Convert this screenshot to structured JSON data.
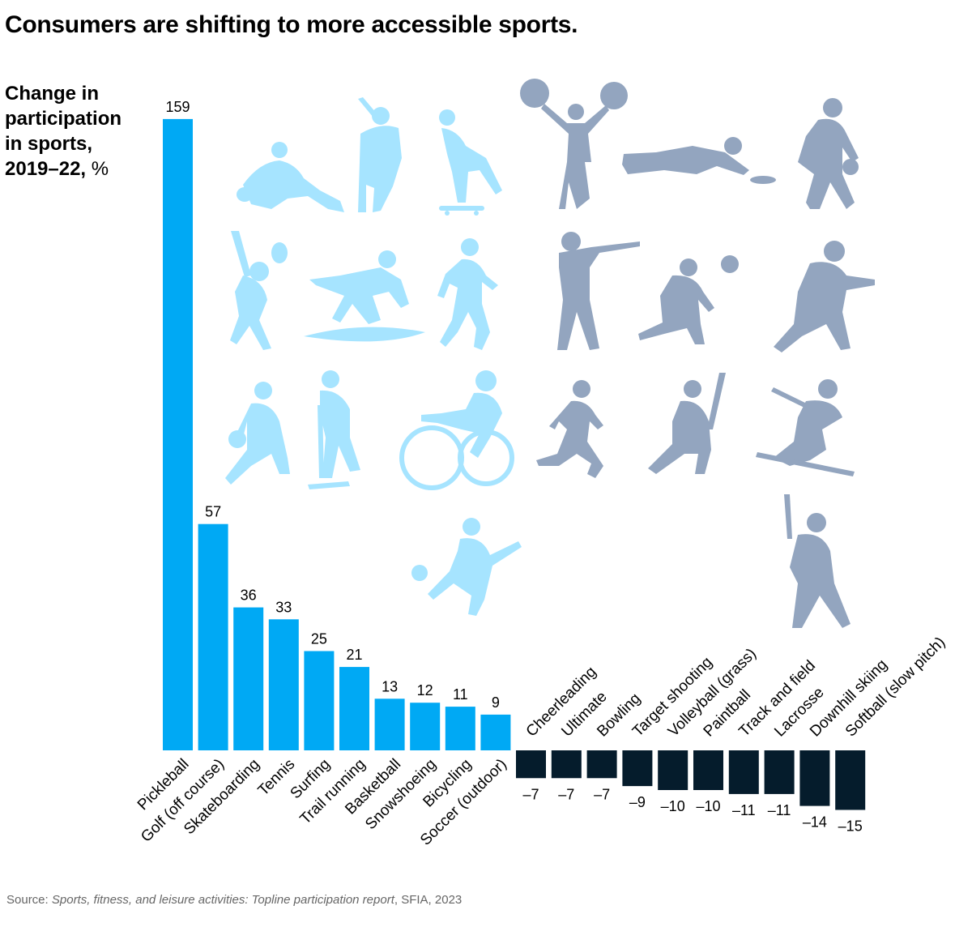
{
  "title": "Consumers are shifting to more accessible sports.",
  "ylabel_bold": "Change in participation in sports, 2019–22,",
  "ylabel_unit": "%",
  "source": {
    "prefix": "Source: ",
    "italic": "Sports, fitness, and leisure activities: Topline participation report",
    "suffix": ", SFIA, 2023"
  },
  "colors": {
    "positive": "#00a9f4",
    "negative": "#051c2c",
    "icon_positive": "#a6e4ff",
    "icon_negative": "#93a5bf"
  },
  "chart_data": {
    "type": "bar",
    "categories": [
      "Pickleball",
      "Golf (off course)",
      "Skateboarding",
      "Tennis",
      "Surfing",
      "Trail running",
      "Basketball",
      "Snowshoeing",
      "Bicycling",
      "Soccer (outdoor)",
      "Cheerleading",
      "Ultimate",
      "Bowling",
      "Target shooting",
      "Volleyball (grass)",
      "Paintball",
      "Track and field",
      "Lacrosse",
      "Downhill skiing",
      "Softball (slow pitch)"
    ],
    "values": [
      159,
      57,
      36,
      33,
      25,
      21,
      13,
      12,
      11,
      9,
      -7,
      -7,
      -7,
      -9,
      -10,
      -10,
      -11,
      -11,
      -14,
      -15
    ],
    "value_labels": [
      "159",
      "57",
      "36",
      "33",
      "25",
      "21",
      "13",
      "12",
      "11",
      "9",
      "–7",
      "–7",
      "–7",
      "–9",
      "–10",
      "–10",
      "–11",
      "–11",
      "–14",
      "–15"
    ],
    "ylabel": "Change in participation in sports, 2019–22, %",
    "grid": false,
    "legend": "none"
  },
  "icons": [
    "catcher-icon",
    "golfer-icon",
    "skateboarder-icon",
    "cheerleader-icon",
    "ultimate-diving-icon",
    "bowler-icon",
    "tennis-player-icon",
    "surfer-icon",
    "trail-runner-icon",
    "target-shooter-icon",
    "volleyball-player-icon",
    "paintball-player-icon",
    "basketball-player-icon",
    "snowshoer-icon",
    "cyclist-icon",
    "track-runner-icon",
    "lacrosse-player-icon",
    "skier-icon",
    "soccer-player-icon",
    "softball-batter-icon"
  ]
}
